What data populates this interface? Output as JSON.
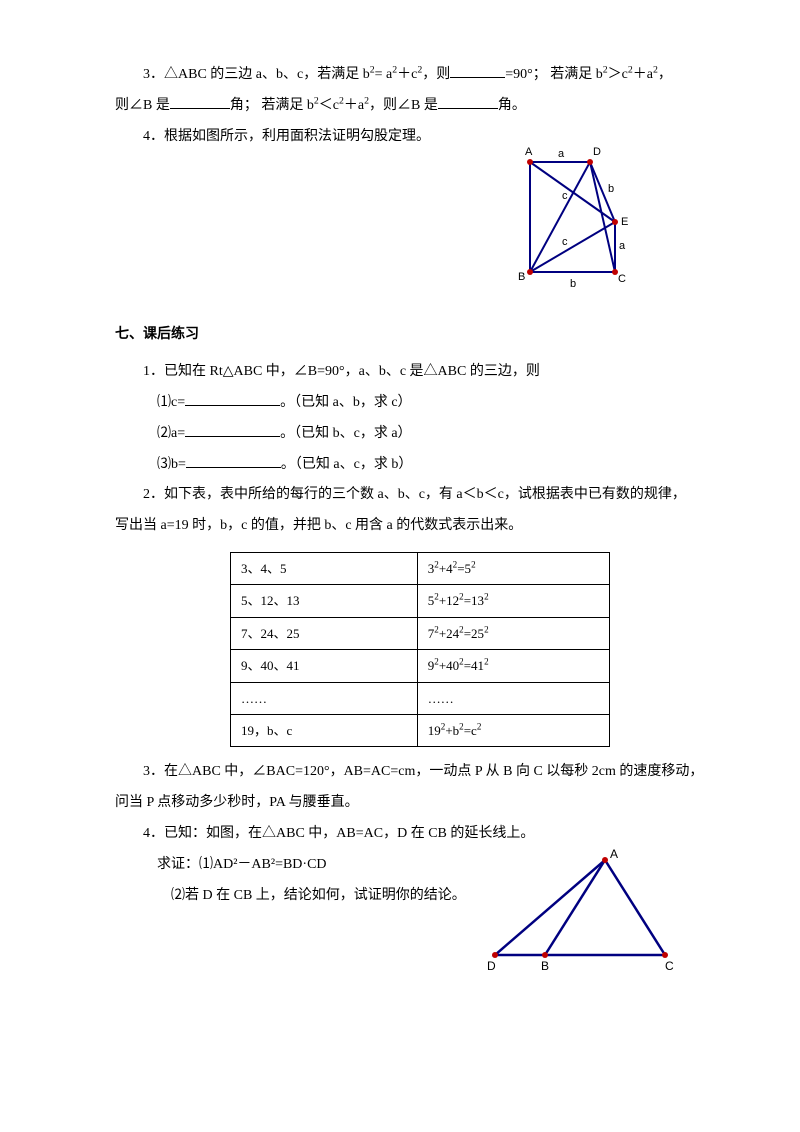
{
  "q3": {
    "part1_pre": "3．△ABC 的三边 a、b、c，若满足 b",
    "part1_mid": "= a",
    "part1_mid2": "＋c",
    "part1_after": "，则",
    "part1_tail": "=90°；  若满足 b",
    "part1_tail2": "＞c",
    "part1_tail3": "＋a",
    "part1_end": "，",
    "line2_pre": "则∠B 是",
    "line2_mid": "角；  若满足 b",
    "line2_mid2": "＜c",
    "line2_mid3": "＋a",
    "line2_after": "，则∠B 是",
    "line2_end": "角。"
  },
  "q4": "4．根据如图所示，利用面积法证明勾股定理。",
  "section7": "七、课后练习",
  "s7q1": {
    "head": "1．已知在 Rt△ABC 中，∠B=90°，a、b、c 是△ABC 的三边，则",
    "c": "⑴c=",
    "c_tail": "。（已知 a、b，求 c）",
    "a": "⑵a=",
    "a_tail": "。（已知 b、c，求 a）",
    "b": "⑶b=",
    "b_tail": "。（已知 a、c，求 b）"
  },
  "s7q2": {
    "line1": "2．如下表，表中所给的每行的三个数 a、b、c，有 a＜b＜c，试根据表中已有数的规律，",
    "line2": "写出当 a=19 时，b，c 的值，并把 b、c 用含 a 的代数式表示出来。"
  },
  "table": {
    "rows": [
      [
        "3、4、5",
        "3²+4²=5²"
      ],
      [
        "5、12、13",
        "5²+12²=13²"
      ],
      [
        "7、24、25",
        "7²+24²=25²"
      ],
      [
        "9、40、41",
        "9²+40²=41²"
      ],
      [
        "……",
        "……"
      ],
      [
        "19，b、c",
        "19²+b²=c²"
      ]
    ]
  },
  "s7q3": {
    "line1": "3．在△ABC 中，∠BAC=120°，AB=AC=cm，一动点 P 从 B 向 C 以每秒 2cm 的速度移动，",
    "line2": "问当 P 点移动多少秒时，PA 与腰垂直。"
  },
  "s7q4": {
    "head": "4．已知：如图，在△ABC 中，AB=AC，D 在 CB 的延长线上。",
    "prove": "求证：⑴AD²－AB²=BD·CD",
    "part2": "⑵若 D 在 CB 上，结论如何，试证明你的结论。"
  },
  "fig1": {
    "labels": {
      "A": "A",
      "B": "B",
      "C": "C",
      "D": "D",
      "E": "E",
      "a": "a",
      "b": "b",
      "c": "c"
    },
    "colors": {
      "line": "#000080",
      "point": "#c00000",
      "text": "#000000"
    }
  },
  "fig2": {
    "labels": {
      "A": "A",
      "B": "B",
      "C": "C",
      "D": "D"
    },
    "colors": {
      "line": "#000080",
      "point": "#c00000",
      "text": "#000000"
    }
  }
}
